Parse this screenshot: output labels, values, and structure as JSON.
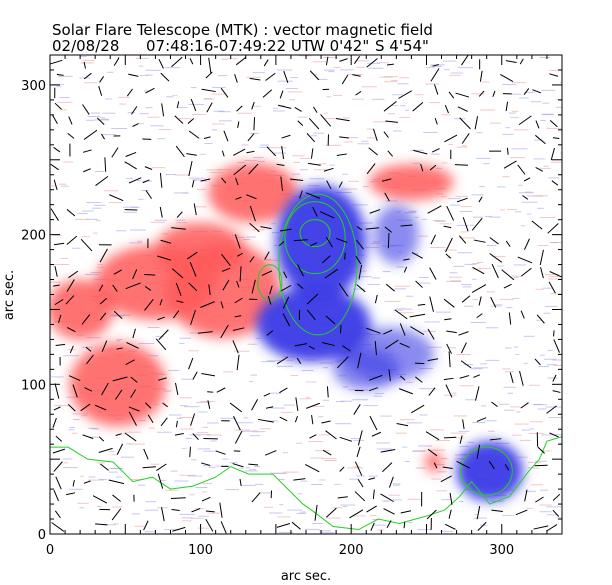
{
  "header": {
    "title": "Solar Flare Telescope (MTK) : vector magnetic field",
    "date": "02/08/28",
    "time_range": "07:48:16-07:49:22 UT",
    "position_w": "W 0'42\"",
    "position_s": "S 4'54\""
  },
  "chart_data": {
    "type": "heatmap",
    "title": "Solar Flare Telescope (MTK) : vector magnetic field",
    "xlabel": "arc sec.",
    "ylabel": "arc sec.",
    "xlim": [
      0,
      340
    ],
    "ylim": [
      0,
      320
    ],
    "x_ticks": [
      0,
      100,
      200,
      300
    ],
    "y_ticks": [
      0,
      100,
      200,
      300
    ],
    "x_tick_labels": [
      "0",
      "100",
      "200",
      "300"
    ],
    "y_tick_labels": [
      "0",
      "100",
      "200",
      "300"
    ],
    "colors": {
      "positive_polarity": "#ff5a5a",
      "negative_polarity": "#3a3ae6",
      "contour": "#22d022",
      "vectors": "#000000",
      "background_noise_red": "#e89a9a",
      "background_noise_blue": "#9a9ae8"
    },
    "positive_regions": [
      {
        "x": 115,
        "y": 163,
        "rx": 38,
        "ry": 32
      },
      {
        "x": 70,
        "y": 168,
        "rx": 40,
        "ry": 25
      },
      {
        "x": 20,
        "y": 150,
        "rx": 22,
        "ry": 20
      },
      {
        "x": 45,
        "y": 100,
        "rx": 32,
        "ry": 28
      },
      {
        "x": 135,
        "y": 228,
        "rx": 30,
        "ry": 20
      },
      {
        "x": 240,
        "y": 235,
        "rx": 28,
        "ry": 12
      },
      {
        "x": 100,
        "y": 190,
        "rx": 30,
        "ry": 18
      },
      {
        "x": 255,
        "y": 48,
        "rx": 6,
        "ry": 7
      }
    ],
    "negative_regions": [
      {
        "x": 180,
        "y": 195,
        "rx": 30,
        "ry": 38
      },
      {
        "x": 175,
        "y": 140,
        "rx": 38,
        "ry": 25
      },
      {
        "x": 230,
        "y": 200,
        "rx": 15,
        "ry": 20
      },
      {
        "x": 292,
        "y": 42,
        "rx": 22,
        "ry": 20
      },
      {
        "x": 225,
        "y": 120,
        "rx": 30,
        "ry": 18
      },
      {
        "x": 210,
        "y": 110,
        "rx": 22,
        "ry": 14
      }
    ],
    "contours": [
      {
        "x": 176,
        "y": 201,
        "rx": 10,
        "ry": 9
      },
      {
        "x": 176,
        "y": 198,
        "rx": 20,
        "ry": 24
      },
      {
        "x": 178,
        "y": 180,
        "rx": 26,
        "ry": 47
      },
      {
        "x": 290,
        "y": 42,
        "rx": 17,
        "ry": 16
      },
      {
        "x": 146,
        "y": 168,
        "rx": 8,
        "ry": 12
      }
    ],
    "limb_line": [
      [
        0,
        58
      ],
      [
        12,
        58
      ],
      [
        25,
        50
      ],
      [
        42,
        48
      ],
      [
        55,
        35
      ],
      [
        68,
        38
      ],
      [
        80,
        30
      ],
      [
        95,
        32
      ],
      [
        110,
        38
      ],
      [
        120,
        45
      ],
      [
        132,
        40
      ],
      [
        148,
        40
      ],
      [
        160,
        28
      ],
      [
        168,
        20
      ],
      [
        175,
        15
      ],
      [
        188,
        5
      ],
      [
        205,
        3
      ],
      [
        218,
        10
      ],
      [
        232,
        7
      ],
      [
        250,
        12
      ],
      [
        262,
        16
      ],
      [
        272,
        25
      ],
      [
        280,
        35
      ],
      [
        292,
        20
      ],
      [
        305,
        25
      ],
      [
        318,
        42
      ],
      [
        325,
        50
      ],
      [
        330,
        62
      ],
      [
        340,
        65
      ]
    ]
  }
}
